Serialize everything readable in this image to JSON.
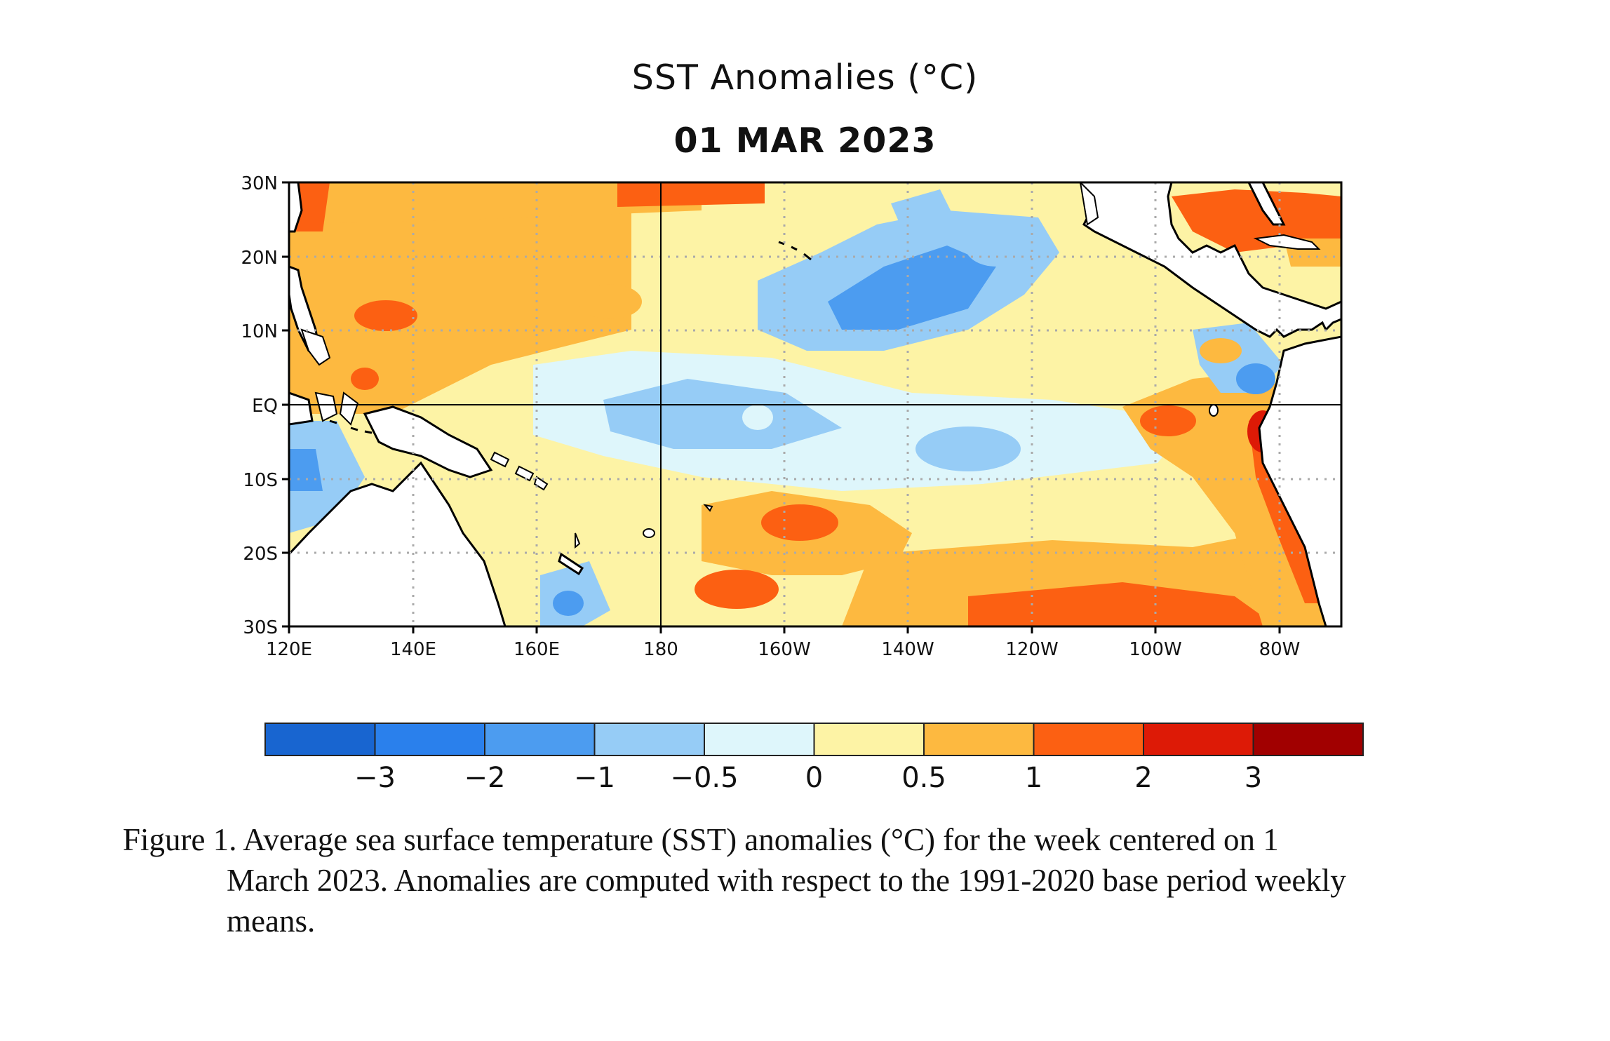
{
  "figure": {
    "title": "SST Anomalies (°C)",
    "date": "01 MAR 2023",
    "caption_line1": "Figure 1. Average sea surface temperature (SST) anomalies (°C) for the week centered on 1",
    "caption_line2": "March 2023.  Anomalies are computed with respect to the 1991-2020 base period weekly",
    "caption_line3": "means."
  },
  "map_data": {
    "region": "Tropical Pacific Ocean",
    "lon_range_deg_east": [
      120,
      290
    ],
    "lat_range": [
      -30,
      30
    ],
    "lat_ticks": [
      {
        "value": 30,
        "label": "30N"
      },
      {
        "value": 20,
        "label": "20N"
      },
      {
        "value": 10,
        "label": "10N"
      },
      {
        "value": 0,
        "label": "EQ"
      },
      {
        "value": -10,
        "label": "10S"
      },
      {
        "value": -20,
        "label": "20S"
      },
      {
        "value": -30,
        "label": "30S"
      }
    ],
    "lon_ticks": [
      {
        "value": 120,
        "label": "120E"
      },
      {
        "value": 140,
        "label": "140E"
      },
      {
        "value": 160,
        "label": "160E"
      },
      {
        "value": 180,
        "label": "180"
      },
      {
        "value": 200,
        "label": "160W"
      },
      {
        "value": 220,
        "label": "140W"
      },
      {
        "value": 240,
        "label": "120W"
      },
      {
        "value": 260,
        "label": "100W"
      },
      {
        "value": 280,
        "label": "80W"
      }
    ],
    "grid": "dotted",
    "reference_lines": [
      "equator",
      "dateline"
    ],
    "land_color": "#ffffff",
    "colorbar": {
      "colors": [
        "#1865d0",
        "#2a80ec",
        "#4c9cf0",
        "#96ccf6",
        "#def6fb",
        "#fdf3a5",
        "#fdb940",
        "#fc6012",
        "#dd1a06",
        "#a10000"
      ],
      "labels": [
        "−3",
        "−2",
        "−1",
        "−0.5",
        "0",
        "0.5",
        "1",
        "2",
        "3"
      ]
    },
    "anomaly_features": [
      {
        "region": "western Pacific 10N–25N",
        "level": "0.5 to 1"
      },
      {
        "region": "subtropical North Pacific 130W–160W",
        "level": "-0.5 to -1"
      },
      {
        "region": "central equatorial Pacific 180–140W",
        "level": "-0.5 to 0"
      },
      {
        "region": "South Pacific 20S–30S 160W–100W",
        "level": "1 to 2"
      },
      {
        "region": "far eastern Pacific / Peru coast",
        "level": "1 to 3"
      },
      {
        "region": "Gulf of Mexico",
        "level": "1 to 2"
      }
    ]
  }
}
